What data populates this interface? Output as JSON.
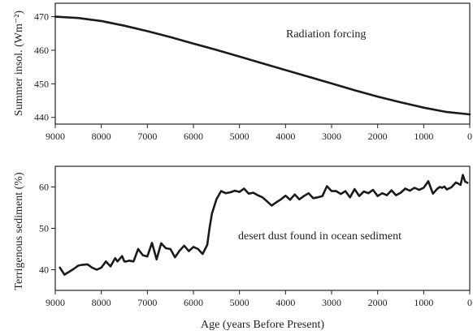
{
  "chart_data": [
    {
      "type": "line",
      "title": "",
      "annotation": "Radiation forcing",
      "xlabel": "",
      "ylabel": "Summer insol. (Wm⁻²)",
      "xlim": [
        9000,
        0
      ],
      "ylim": [
        438,
        474
      ],
      "x_ticks": [
        9000,
        8000,
        7000,
        6000,
        5000,
        4000,
        3000,
        2000,
        1000,
        0
      ],
      "y_ticks": [
        440,
        450,
        460,
        470
      ],
      "grid": false,
      "series": [
        {
          "x": [
            9000,
            8500,
            8000,
            7500,
            7000,
            6500,
            6000,
            5500,
            5000,
            4500,
            4000,
            3500,
            3000,
            2500,
            2000,
            1500,
            1000,
            500,
            0
          ],
          "y": [
            470.0,
            469.6,
            468.7,
            467.3,
            465.7,
            463.9,
            462.0,
            460.1,
            458.1,
            456.1,
            454.1,
            452.1,
            450.1,
            448.1,
            446.2,
            444.5,
            442.9,
            441.6,
            440.9
          ]
        }
      ]
    },
    {
      "type": "line",
      "title": "",
      "annotation": "desert dust found in ocean sediment",
      "xlabel": "Age (years Before Present)",
      "ylabel": "Terrigenous sediment (%)",
      "xlim": [
        9000,
        0
      ],
      "ylim": [
        35,
        65
      ],
      "x_ticks": [
        9000,
        8000,
        7000,
        6000,
        5000,
        4000,
        3000,
        2000,
        1000,
        0
      ],
      "y_ticks": [
        40,
        50,
        60
      ],
      "grid": false,
      "series": [
        {
          "x": [
            8900,
            8800,
            8700,
            8600,
            8500,
            8400,
            8300,
            8200,
            8100,
            8000,
            7900,
            7800,
            7700,
            7650,
            7600,
            7550,
            7500,
            7450,
            7400,
            7300,
            7200,
            7100,
            7000,
            6900,
            6800,
            6700,
            6600,
            6500,
            6400,
            6300,
            6200,
            6100,
            6000,
            5900,
            5800,
            5700,
            5650,
            5600,
            5500,
            5400,
            5300,
            5200,
            5100,
            5000,
            4900,
            4800,
            4700,
            4600,
            4500,
            4400,
            4300,
            4200,
            4100,
            4000,
            3900,
            3800,
            3700,
            3600,
            3500,
            3400,
            3300,
            3200,
            3100,
            3000,
            2900,
            2800,
            2700,
            2600,
            2500,
            2400,
            2300,
            2200,
            2100,
            2000,
            1900,
            1800,
            1700,
            1600,
            1500,
            1400,
            1300,
            1200,
            1100,
            1000,
            900,
            800,
            700,
            650,
            600,
            550,
            500,
            400,
            300,
            200,
            150,
            100,
            50
          ],
          "y": [
            40.5,
            38.8,
            39.5,
            40.2,
            41.0,
            41.2,
            41.3,
            40.5,
            40.0,
            40.5,
            42.0,
            40.8,
            42.8,
            42.0,
            42.6,
            43.3,
            42.0,
            42.0,
            42.2,
            42.0,
            45.0,
            43.5,
            43.2,
            46.5,
            42.5,
            46.4,
            45.2,
            45.0,
            43.0,
            44.6,
            45.8,
            44.5,
            45.5,
            45.0,
            43.8,
            46.0,
            50.0,
            53.5,
            57.0,
            59.0,
            58.5,
            58.7,
            59.1,
            58.8,
            59.6,
            58.4,
            58.6,
            58.0,
            57.5,
            56.5,
            55.5,
            56.3,
            57.0,
            57.9,
            56.9,
            58.2,
            57.0,
            57.8,
            58.5,
            57.3,
            57.5,
            57.8,
            60.2,
            59.0,
            59.0,
            58.3,
            59.0,
            57.5,
            59.5,
            57.8,
            58.9,
            58.5,
            59.3,
            57.8,
            58.5,
            58.0,
            59.2,
            58.0,
            58.6,
            59.6,
            59.1,
            59.8,
            59.3,
            59.8,
            61.4,
            58.4,
            59.6,
            60.0,
            59.8,
            60.1,
            59.4,
            59.9,
            61.1,
            60.5,
            62.9,
            61.3,
            61.0
          ]
        }
      ]
    }
  ]
}
